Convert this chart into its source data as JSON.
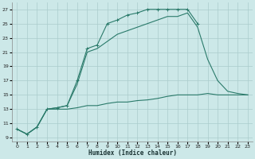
{
  "xlabel": "Humidex (Indice chaleur)",
  "ylabel": "",
  "background_color": "#cce8e8",
  "grid_color": "#aacccc",
  "line_color": "#2a7a6a",
  "xlim": [
    -0.5,
    23.5
  ],
  "ylim": [
    8.5,
    28
  ],
  "xticks": [
    0,
    1,
    2,
    3,
    4,
    5,
    6,
    7,
    8,
    9,
    10,
    11,
    12,
    13,
    14,
    15,
    16,
    17,
    18,
    19,
    20,
    21,
    22,
    23
  ],
  "yticks": [
    9,
    11,
    13,
    15,
    17,
    19,
    21,
    23,
    25,
    27
  ],
  "series": [
    {
      "x": [
        0,
        1,
        2,
        3,
        4,
        5,
        6,
        7,
        8,
        9,
        10,
        11,
        12,
        13,
        14,
        15,
        16,
        17,
        18
      ],
      "y": [
        10.2,
        9.5,
        10.5,
        13.0,
        13.2,
        13.5,
        17.0,
        21.5,
        22.0,
        25.0,
        25.5,
        26.2,
        26.5,
        27.0,
        27.0,
        27.0,
        27.0,
        27.0,
        25.0
      ],
      "marker": "+"
    },
    {
      "x": [
        0,
        1,
        2,
        3,
        4,
        5,
        6,
        7,
        8,
        9,
        10,
        11,
        12,
        13,
        14,
        15,
        16,
        17,
        18,
        19,
        20,
        21,
        22,
        23
      ],
      "y": [
        10.2,
        9.5,
        10.5,
        13.0,
        13.2,
        13.5,
        16.5,
        21.0,
        21.5,
        22.5,
        23.5,
        24.0,
        24.5,
        25.0,
        25.5,
        26.0,
        26.0,
        26.5,
        24.5,
        20.0,
        17.0,
        15.5,
        15.2,
        15.0
      ],
      "marker": null
    },
    {
      "x": [
        0,
        1,
        2,
        3,
        4,
        5,
        6,
        7,
        8,
        9,
        10,
        11,
        12,
        13,
        14,
        15,
        16,
        17,
        18,
        19,
        20,
        21,
        22,
        23
      ],
      "y": [
        10.2,
        9.5,
        10.5,
        13.0,
        13.0,
        13.0,
        13.2,
        13.5,
        13.5,
        13.8,
        14.0,
        14.0,
        14.2,
        14.3,
        14.5,
        14.8,
        15.0,
        15.0,
        15.0,
        15.2,
        15.0,
        15.0,
        15.0,
        15.0
      ],
      "marker": null
    }
  ]
}
